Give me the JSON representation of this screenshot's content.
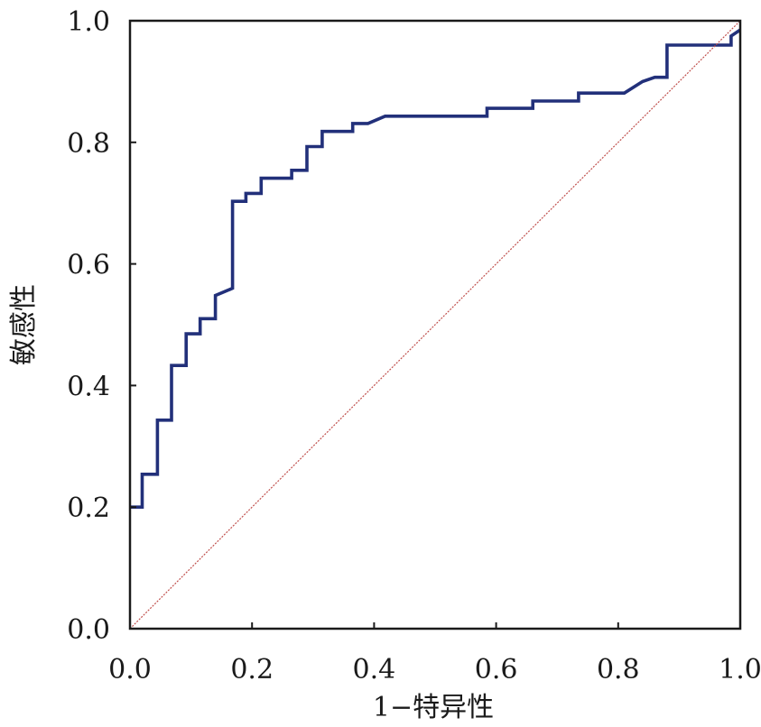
{
  "chart_data": {
    "type": "line",
    "xlabel": "1−特异性",
    "ylabel": "敏感性",
    "xlim": [
      0,
      1
    ],
    "ylim": [
      0,
      1
    ],
    "x_ticks": [
      "0.0",
      "0.2",
      "0.4",
      "0.6",
      "0.8",
      "1.0"
    ],
    "y_ticks": [
      "0.0",
      "0.2",
      "0.4",
      "0.6",
      "0.8",
      "1.0"
    ],
    "grid": false,
    "series": [
      {
        "color": "#22307a",
        "points": [
          [
            0.0,
            0.2
          ],
          [
            0.02,
            0.2
          ],
          [
            0.02,
            0.254
          ],
          [
            0.045,
            0.254
          ],
          [
            0.045,
            0.343
          ],
          [
            0.068,
            0.343
          ],
          [
            0.068,
            0.433
          ],
          [
            0.092,
            0.433
          ],
          [
            0.092,
            0.485
          ],
          [
            0.115,
            0.485
          ],
          [
            0.115,
            0.51
          ],
          [
            0.14,
            0.51
          ],
          [
            0.14,
            0.548
          ],
          [
            0.168,
            0.56
          ],
          [
            0.168,
            0.703
          ],
          [
            0.19,
            0.703
          ],
          [
            0.19,
            0.716
          ],
          [
            0.215,
            0.716
          ],
          [
            0.215,
            0.741
          ],
          [
            0.265,
            0.741
          ],
          [
            0.265,
            0.754
          ],
          [
            0.29,
            0.754
          ],
          [
            0.29,
            0.793
          ],
          [
            0.315,
            0.793
          ],
          [
            0.315,
            0.818
          ],
          [
            0.365,
            0.818
          ],
          [
            0.365,
            0.831
          ],
          [
            0.39,
            0.831
          ],
          [
            0.418,
            0.843
          ],
          [
            0.585,
            0.843
          ],
          [
            0.585,
            0.856
          ],
          [
            0.66,
            0.856
          ],
          [
            0.66,
            0.868
          ],
          [
            0.735,
            0.868
          ],
          [
            0.735,
            0.881
          ],
          [
            0.81,
            0.881
          ],
          [
            0.84,
            0.9
          ],
          [
            0.86,
            0.907
          ],
          [
            0.88,
            0.907
          ],
          [
            0.88,
            0.96
          ],
          [
            0.985,
            0.96
          ],
          [
            0.985,
            0.975
          ],
          [
            1.0,
            0.985
          ]
        ]
      },
      {
        "color": "#c0504d",
        "dashed": true,
        "points": [
          [
            0.0,
            0.0
          ],
          [
            1.0,
            1.0
          ]
        ]
      }
    ]
  }
}
